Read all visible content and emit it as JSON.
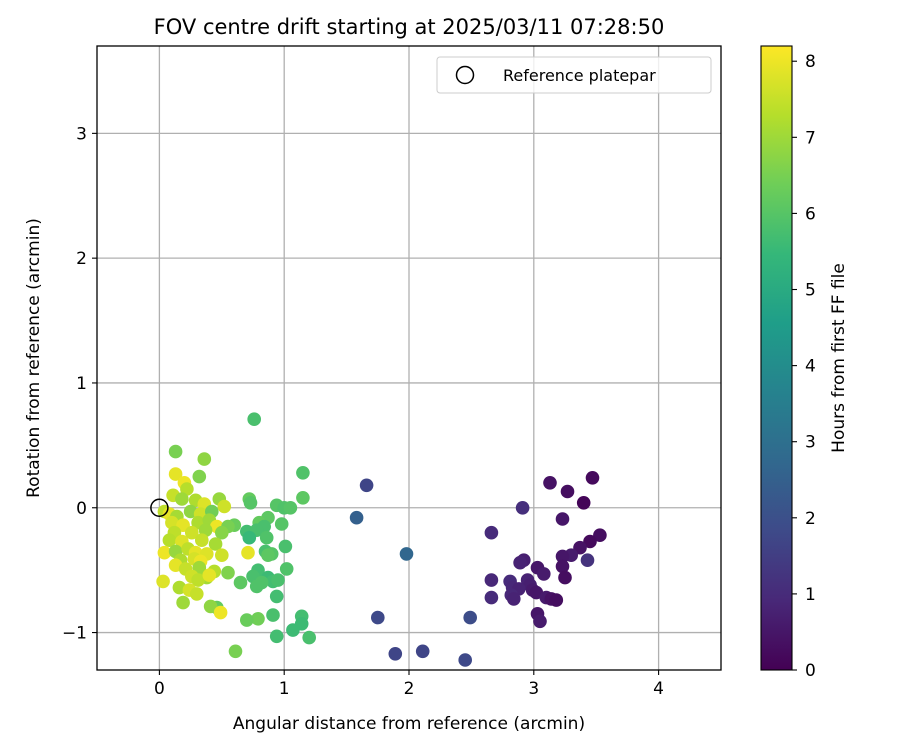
{
  "chart_data": {
    "type": "scatter",
    "title": "FOV centre drift starting at 2025/03/11 07:28:50",
    "xlabel": "Angular distance from reference (arcmin)",
    "ylabel": "Rotation from reference (arcmin)",
    "xlim": [
      -0.5,
      4.5
    ],
    "ylim": [
      -1.3,
      3.7
    ],
    "xticks": [
      0,
      1,
      2,
      3,
      4
    ],
    "yticks": [
      -1,
      0,
      1,
      2,
      3
    ],
    "xtick_labels": [
      "0",
      "1",
      "2",
      "3",
      "4"
    ],
    "ytick_labels": [
      "−1",
      "0",
      "1",
      "2",
      "3"
    ],
    "grid": true,
    "legend": {
      "placement": "top-right",
      "entries": [
        "Reference platepar"
      ]
    },
    "reference_point": {
      "x": 0,
      "y": 0
    },
    "colorbar": {
      "label": "Hours from first FF file",
      "min": 0,
      "max": 8.2,
      "ticks": [
        0,
        1,
        2,
        3,
        4,
        5,
        6,
        7,
        8
      ],
      "tick_labels": [
        "0",
        "1",
        "2",
        "3",
        "4",
        "5",
        "6",
        "7",
        "8"
      ],
      "colormap": "viridis"
    },
    "points": [
      {
        "x": 3.47,
        "y": 0.24,
        "c": 0.2
      },
      {
        "x": 3.13,
        "y": 0.2,
        "c": 0.4
      },
      {
        "x": 3.27,
        "y": 0.13,
        "c": 0.3
      },
      {
        "x": 3.4,
        "y": 0.04,
        "c": 0.1
      },
      {
        "x": 2.91,
        "y": 0.0,
        "c": 1.1
      },
      {
        "x": 3.23,
        "y": -0.09,
        "c": 0.5
      },
      {
        "x": 2.66,
        "y": -0.2,
        "c": 1.0
      },
      {
        "x": 3.53,
        "y": -0.22,
        "c": 0.3
      },
      {
        "x": 3.45,
        "y": -0.27,
        "c": 0.2
      },
      {
        "x": 3.37,
        "y": -0.32,
        "c": 0.4
      },
      {
        "x": 3.3,
        "y": -0.38,
        "c": 0.6
      },
      {
        "x": 3.23,
        "y": -0.39,
        "c": 0.5
      },
      {
        "x": 3.43,
        "y": -0.42,
        "c": 1.2
      },
      {
        "x": 2.92,
        "y": -0.42,
        "c": 0.7
      },
      {
        "x": 2.89,
        "y": -0.44,
        "c": 0.8
      },
      {
        "x": 3.23,
        "y": -0.47,
        "c": 0.4
      },
      {
        "x": 3.03,
        "y": -0.48,
        "c": 0.5
      },
      {
        "x": 3.08,
        "y": -0.53,
        "c": 0.6
      },
      {
        "x": 3.25,
        "y": -0.56,
        "c": 0.3
      },
      {
        "x": 2.66,
        "y": -0.58,
        "c": 0.9
      },
      {
        "x": 2.95,
        "y": -0.58,
        "c": 0.8
      },
      {
        "x": 2.81,
        "y": -0.59,
        "c": 1.0
      },
      {
        "x": 2.97,
        "y": -0.62,
        "c": 0.7
      },
      {
        "x": 2.83,
        "y": -0.64,
        "c": 0.9
      },
      {
        "x": 2.88,
        "y": -0.65,
        "c": 0.8
      },
      {
        "x": 2.99,
        "y": -0.66,
        "c": 0.6
      },
      {
        "x": 3.02,
        "y": -0.68,
        "c": 0.5
      },
      {
        "x": 2.82,
        "y": -0.7,
        "c": 0.9
      },
      {
        "x": 2.66,
        "y": -0.72,
        "c": 1.0
      },
      {
        "x": 3.1,
        "y": -0.72,
        "c": 0.6
      },
      {
        "x": 2.84,
        "y": -0.73,
        "c": 0.8
      },
      {
        "x": 3.14,
        "y": -0.73,
        "c": 0.4
      },
      {
        "x": 3.18,
        "y": -0.74,
        "c": 0.3
      },
      {
        "x": 3.03,
        "y": -0.85,
        "c": 0.5
      },
      {
        "x": 3.05,
        "y": -0.91,
        "c": 0.6
      },
      {
        "x": 1.66,
        "y": 0.18,
        "c": 1.7
      },
      {
        "x": 1.58,
        "y": -0.08,
        "c": 2.5
      },
      {
        "x": 1.98,
        "y": -0.37,
        "c": 2.7
      },
      {
        "x": 1.75,
        "y": -0.88,
        "c": 1.8
      },
      {
        "x": 2.49,
        "y": -0.88,
        "c": 1.9
      },
      {
        "x": 1.89,
        "y": -1.17,
        "c": 1.7
      },
      {
        "x": 2.11,
        "y": -1.15,
        "c": 1.7
      },
      {
        "x": 2.45,
        "y": -1.22,
        "c": 1.8
      },
      {
        "x": 0.76,
        "y": 0.71,
        "c": 5.8
      },
      {
        "x": 1.15,
        "y": 0.28,
        "c": 5.9
      },
      {
        "x": 1.15,
        "y": 0.08,
        "c": 6.1
      },
      {
        "x": 0.94,
        "y": 0.02,
        "c": 6.0
      },
      {
        "x": 1.0,
        "y": 0.0,
        "c": 5.9
      },
      {
        "x": 1.05,
        "y": 0.0,
        "c": 6.0
      },
      {
        "x": 0.72,
        "y": 0.07,
        "c": 6.2
      },
      {
        "x": 0.73,
        "y": 0.04,
        "c": 6.0
      },
      {
        "x": 0.87,
        "y": -0.08,
        "c": 6.1
      },
      {
        "x": 0.8,
        "y": -0.12,
        "c": 6.2
      },
      {
        "x": 0.84,
        "y": -0.15,
        "c": 5.8
      },
      {
        "x": 0.98,
        "y": -0.13,
        "c": 6.0
      },
      {
        "x": 0.6,
        "y": -0.14,
        "c": 6.3
      },
      {
        "x": 0.7,
        "y": -0.19,
        "c": 5.7
      },
      {
        "x": 0.78,
        "y": -0.18,
        "c": 5.8
      },
      {
        "x": 0.72,
        "y": -0.24,
        "c": 5.5
      },
      {
        "x": 0.86,
        "y": -0.24,
        "c": 5.9
      },
      {
        "x": 1.01,
        "y": -0.31,
        "c": 5.8
      },
      {
        "x": 0.85,
        "y": -0.35,
        "c": 5.8
      },
      {
        "x": 0.9,
        "y": -0.37,
        "c": 6.0
      },
      {
        "x": 0.87,
        "y": -0.38,
        "c": 6.1
      },
      {
        "x": 1.02,
        "y": -0.49,
        "c": 5.9
      },
      {
        "x": 0.79,
        "y": -0.5,
        "c": 5.7
      },
      {
        "x": 0.75,
        "y": -0.55,
        "c": 5.8
      },
      {
        "x": 0.87,
        "y": -0.56,
        "c": 5.6
      },
      {
        "x": 0.91,
        "y": -0.59,
        "c": 5.7
      },
      {
        "x": 0.95,
        "y": -0.58,
        "c": 5.8
      },
      {
        "x": 0.82,
        "y": -0.6,
        "c": 5.9
      },
      {
        "x": 0.65,
        "y": -0.6,
        "c": 6.1
      },
      {
        "x": 0.78,
        "y": -0.63,
        "c": 5.9
      },
      {
        "x": 0.94,
        "y": -0.71,
        "c": 5.7
      },
      {
        "x": 0.46,
        "y": -0.8,
        "c": 6.2
      },
      {
        "x": 0.91,
        "y": -0.86,
        "c": 5.8
      },
      {
        "x": 1.14,
        "y": -0.87,
        "c": 5.7
      },
      {
        "x": 0.79,
        "y": -0.89,
        "c": 6.4
      },
      {
        "x": 0.7,
        "y": -0.9,
        "c": 6.3
      },
      {
        "x": 1.14,
        "y": -0.93,
        "c": 5.6
      },
      {
        "x": 1.07,
        "y": -0.98,
        "c": 5.6
      },
      {
        "x": 0.94,
        "y": -1.03,
        "c": 5.7
      },
      {
        "x": 1.2,
        "y": -1.04,
        "c": 5.8
      },
      {
        "x": 0.61,
        "y": -1.15,
        "c": 6.5
      },
      {
        "x": 0.13,
        "y": 0.45,
        "c": 6.5
      },
      {
        "x": 0.36,
        "y": 0.39,
        "c": 6.8
      },
      {
        "x": 0.13,
        "y": 0.27,
        "c": 7.9
      },
      {
        "x": 0.32,
        "y": 0.25,
        "c": 6.6
      },
      {
        "x": 0.2,
        "y": 0.2,
        "c": 8.0
      },
      {
        "x": 0.22,
        "y": 0.15,
        "c": 7.3
      },
      {
        "x": 0.11,
        "y": 0.1,
        "c": 7.5
      },
      {
        "x": 0.18,
        "y": 0.07,
        "c": 7.0
      },
      {
        "x": 0.29,
        "y": 0.06,
        "c": 7.2
      },
      {
        "x": 0.48,
        "y": 0.07,
        "c": 6.9
      },
      {
        "x": 0.36,
        "y": 0.03,
        "c": 7.8
      },
      {
        "x": 0.52,
        "y": 0.01,
        "c": 7.6
      },
      {
        "x": 0.04,
        "y": -0.03,
        "c": 7.4
      },
      {
        "x": 0.08,
        "y": -0.05,
        "c": 7.9
      },
      {
        "x": 0.14,
        "y": -0.07,
        "c": 7.1
      },
      {
        "x": 0.25,
        "y": -0.03,
        "c": 6.8
      },
      {
        "x": 0.33,
        "y": -0.05,
        "c": 7.6
      },
      {
        "x": 0.42,
        "y": -0.03,
        "c": 6.4
      },
      {
        "x": 0.1,
        "y": -0.12,
        "c": 7.7
      },
      {
        "x": 0.19,
        "y": -0.14,
        "c": 7.9
      },
      {
        "x": 0.31,
        "y": -0.12,
        "c": 7.2
      },
      {
        "x": 0.4,
        "y": -0.1,
        "c": 7.0
      },
      {
        "x": 0.46,
        "y": -0.15,
        "c": 8.0
      },
      {
        "x": 0.55,
        "y": -0.15,
        "c": 6.5
      },
      {
        "x": 0.12,
        "y": -0.2,
        "c": 7.4
      },
      {
        "x": 0.26,
        "y": -0.2,
        "c": 7.6
      },
      {
        "x": 0.37,
        "y": -0.18,
        "c": 7.0
      },
      {
        "x": 0.5,
        "y": -0.2,
        "c": 6.7
      },
      {
        "x": 0.08,
        "y": -0.26,
        "c": 7.3
      },
      {
        "x": 0.18,
        "y": -0.27,
        "c": 7.8
      },
      {
        "x": 0.34,
        "y": -0.26,
        "c": 7.5
      },
      {
        "x": 0.45,
        "y": -0.29,
        "c": 7.1
      },
      {
        "x": 0.04,
        "y": -0.36,
        "c": 8.0
      },
      {
        "x": 0.13,
        "y": -0.35,
        "c": 6.9
      },
      {
        "x": 0.23,
        "y": -0.33,
        "c": 7.4
      },
      {
        "x": 0.29,
        "y": -0.36,
        "c": 7.9
      },
      {
        "x": 0.38,
        "y": -0.37,
        "c": 7.8
      },
      {
        "x": 0.5,
        "y": -0.38,
        "c": 7.6
      },
      {
        "x": 0.71,
        "y": -0.36,
        "c": 7.9
      },
      {
        "x": 0.17,
        "y": -0.42,
        "c": 7.2
      },
      {
        "x": 0.28,
        "y": -0.41,
        "c": 7.7
      },
      {
        "x": 0.33,
        "y": -0.43,
        "c": 8.0
      },
      {
        "x": 0.13,
        "y": -0.46,
        "c": 7.9
      },
      {
        "x": 0.21,
        "y": -0.49,
        "c": 7.5
      },
      {
        "x": 0.32,
        "y": -0.48,
        "c": 7.0
      },
      {
        "x": 0.44,
        "y": -0.51,
        "c": 7.3
      },
      {
        "x": 0.55,
        "y": -0.52,
        "c": 6.6
      },
      {
        "x": 0.26,
        "y": -0.55,
        "c": 7.6
      },
      {
        "x": 0.38,
        "y": -0.56,
        "c": 7.1
      },
      {
        "x": 0.31,
        "y": -0.58,
        "c": 7.4
      },
      {
        "x": 0.03,
        "y": -0.59,
        "c": 7.8
      },
      {
        "x": 0.16,
        "y": -0.64,
        "c": 7.2
      },
      {
        "x": 0.24,
        "y": -0.66,
        "c": 7.7
      },
      {
        "x": 0.3,
        "y": -0.69,
        "c": 7.5
      },
      {
        "x": 0.19,
        "y": -0.76,
        "c": 7.0
      },
      {
        "x": 0.41,
        "y": -0.79,
        "c": 6.8
      },
      {
        "x": 0.49,
        "y": -0.84,
        "c": 8.0
      },
      {
        "x": 0.4,
        "y": -0.54,
        "c": 7.9
      }
    ]
  }
}
